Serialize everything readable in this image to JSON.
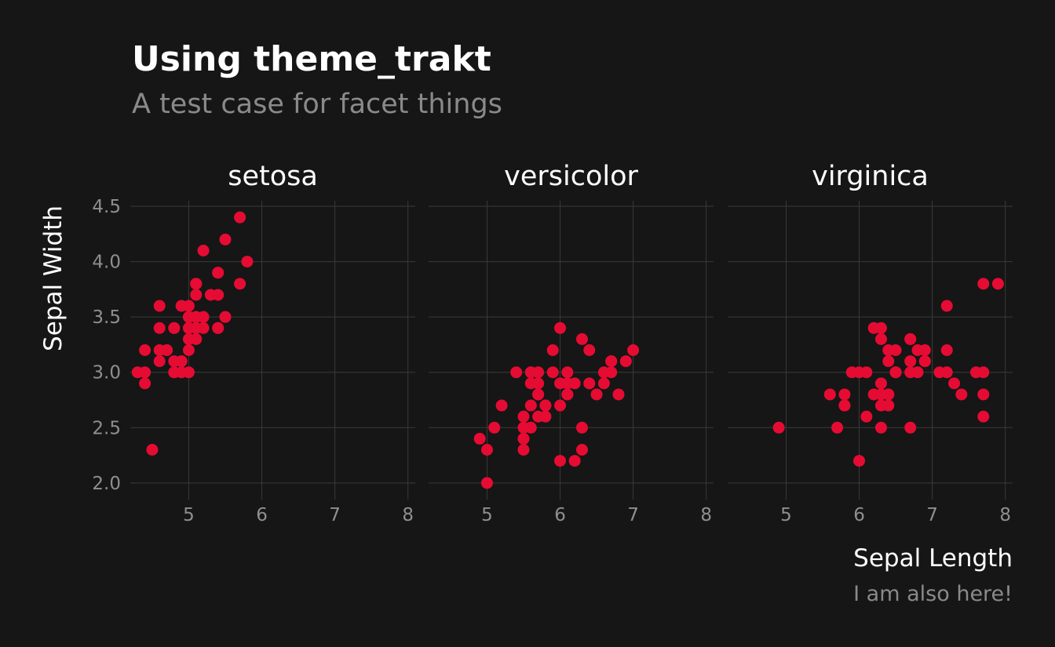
{
  "colors": {
    "background": "#161616",
    "point": "#e60b33",
    "grid": "#3a3a3a",
    "text": "#ffffff",
    "muted_text": "#8a8a8a"
  },
  "chart_data": {
    "type": "scatter",
    "title": "Using theme_trakt",
    "subtitle": "A test case for facet things",
    "xlabel": "Sepal Length",
    "ylabel": "Sepal Width",
    "caption": "I am also here!",
    "xlim": [
      4.2,
      8.1
    ],
    "ylim": [
      1.85,
      4.55
    ],
    "x_ticks": [
      5,
      6,
      7,
      8
    ],
    "x_tick_labels": [
      "5",
      "6",
      "7",
      "8"
    ],
    "y_ticks": [
      2.0,
      2.5,
      3.0,
      3.5,
      4.0,
      4.5
    ],
    "y_tick_labels": [
      "2.0",
      "2.5",
      "3.0",
      "3.5",
      "4.0",
      "4.5"
    ],
    "grid": true,
    "facets": [
      {
        "name": "setosa",
        "points": [
          [
            5.1,
            3.5
          ],
          [
            4.9,
            3.0
          ],
          [
            4.7,
            3.2
          ],
          [
            4.6,
            3.1
          ],
          [
            5.0,
            3.6
          ],
          [
            5.4,
            3.9
          ],
          [
            4.6,
            3.4
          ],
          [
            5.0,
            3.4
          ],
          [
            4.4,
            2.9
          ],
          [
            4.9,
            3.1
          ],
          [
            5.4,
            3.7
          ],
          [
            4.8,
            3.4
          ],
          [
            4.8,
            3.0
          ],
          [
            4.3,
            3.0
          ],
          [
            5.8,
            4.0
          ],
          [
            5.7,
            4.4
          ],
          [
            5.4,
            3.9
          ],
          [
            5.1,
            3.5
          ],
          [
            5.7,
            3.8
          ],
          [
            5.1,
            3.8
          ],
          [
            5.4,
            3.4
          ],
          [
            5.1,
            3.7
          ],
          [
            4.6,
            3.6
          ],
          [
            5.1,
            3.3
          ],
          [
            4.8,
            3.4
          ],
          [
            5.0,
            3.0
          ],
          [
            5.0,
            3.4
          ],
          [
            5.2,
            3.5
          ],
          [
            5.2,
            3.4
          ],
          [
            4.7,
            3.2
          ],
          [
            4.8,
            3.1
          ],
          [
            5.4,
            3.4
          ],
          [
            5.2,
            4.1
          ],
          [
            5.5,
            4.2
          ],
          [
            4.9,
            3.1
          ],
          [
            5.0,
            3.2
          ],
          [
            5.5,
            3.5
          ],
          [
            4.9,
            3.6
          ],
          [
            4.4,
            3.0
          ],
          [
            5.1,
            3.4
          ],
          [
            5.0,
            3.5
          ],
          [
            4.5,
            2.3
          ],
          [
            4.4,
            3.2
          ],
          [
            5.0,
            3.5
          ],
          [
            5.1,
            3.8
          ],
          [
            4.8,
            3.0
          ],
          [
            5.1,
            3.8
          ],
          [
            4.6,
            3.2
          ],
          [
            5.3,
            3.7
          ],
          [
            5.0,
            3.3
          ]
        ]
      },
      {
        "name": "versicolor",
        "points": [
          [
            7.0,
            3.2
          ],
          [
            6.4,
            3.2
          ],
          [
            6.9,
            3.1
          ],
          [
            5.5,
            2.3
          ],
          [
            6.5,
            2.8
          ],
          [
            5.7,
            2.8
          ],
          [
            6.3,
            3.3
          ],
          [
            4.9,
            2.4
          ],
          [
            6.6,
            2.9
          ],
          [
            5.2,
            2.7
          ],
          [
            5.0,
            2.0
          ],
          [
            5.9,
            3.0
          ],
          [
            6.0,
            2.2
          ],
          [
            6.1,
            2.9
          ],
          [
            5.6,
            2.9
          ],
          [
            6.7,
            3.1
          ],
          [
            5.6,
            3.0
          ],
          [
            5.8,
            2.7
          ],
          [
            6.2,
            2.2
          ],
          [
            5.6,
            2.5
          ],
          [
            5.9,
            3.2
          ],
          [
            6.1,
            2.8
          ],
          [
            6.3,
            2.5
          ],
          [
            6.1,
            2.8
          ],
          [
            6.4,
            2.9
          ],
          [
            6.6,
            3.0
          ],
          [
            6.8,
            2.8
          ],
          [
            6.7,
            3.0
          ],
          [
            6.0,
            2.9
          ],
          [
            5.7,
            2.6
          ],
          [
            5.5,
            2.4
          ],
          [
            5.5,
            2.4
          ],
          [
            5.8,
            2.7
          ],
          [
            6.0,
            2.7
          ],
          [
            5.4,
            3.0
          ],
          [
            6.0,
            3.4
          ],
          [
            6.7,
            3.1
          ],
          [
            6.3,
            2.3
          ],
          [
            5.6,
            3.0
          ],
          [
            5.5,
            2.5
          ],
          [
            5.5,
            2.6
          ],
          [
            6.1,
            3.0
          ],
          [
            5.8,
            2.6
          ],
          [
            5.0,
            2.3
          ],
          [
            5.6,
            2.7
          ],
          [
            5.7,
            3.0
          ],
          [
            5.7,
            2.9
          ],
          [
            6.2,
            2.9
          ],
          [
            5.1,
            2.5
          ],
          [
            5.7,
            2.8
          ]
        ]
      },
      {
        "name": "virginica",
        "points": [
          [
            6.3,
            3.3
          ],
          [
            5.8,
            2.7
          ],
          [
            7.1,
            3.0
          ],
          [
            6.3,
            2.9
          ],
          [
            6.5,
            3.0
          ],
          [
            7.6,
            3.0
          ],
          [
            4.9,
            2.5
          ],
          [
            7.3,
            2.9
          ],
          [
            6.7,
            2.5
          ],
          [
            7.2,
            3.6
          ],
          [
            6.5,
            3.2
          ],
          [
            6.4,
            2.7
          ],
          [
            6.8,
            3.0
          ],
          [
            5.7,
            2.5
          ],
          [
            5.8,
            2.8
          ],
          [
            6.4,
            3.2
          ],
          [
            6.5,
            3.0
          ],
          [
            7.7,
            3.8
          ],
          [
            7.7,
            2.6
          ],
          [
            6.0,
            2.2
          ],
          [
            6.9,
            3.2
          ],
          [
            5.6,
            2.8
          ],
          [
            7.7,
            2.8
          ],
          [
            6.3,
            2.7
          ],
          [
            6.7,
            3.3
          ],
          [
            7.2,
            3.2
          ],
          [
            6.2,
            2.8
          ],
          [
            6.1,
            3.0
          ],
          [
            6.4,
            2.8
          ],
          [
            7.2,
            3.0
          ],
          [
            7.4,
            2.8
          ],
          [
            7.9,
            3.8
          ],
          [
            6.4,
            2.8
          ],
          [
            6.3,
            2.8
          ],
          [
            6.1,
            2.6
          ],
          [
            7.7,
            3.0
          ],
          [
            6.3,
            3.4
          ],
          [
            6.4,
            3.1
          ],
          [
            6.0,
            3.0
          ],
          [
            6.9,
            3.1
          ],
          [
            6.7,
            3.1
          ],
          [
            6.9,
            3.1
          ],
          [
            5.8,
            2.7
          ],
          [
            6.8,
            3.2
          ],
          [
            6.7,
            3.3
          ],
          [
            6.7,
            3.0
          ],
          [
            6.3,
            2.5
          ],
          [
            6.5,
            3.0
          ],
          [
            6.2,
            3.4
          ],
          [
            5.9,
            3.0
          ]
        ]
      }
    ]
  }
}
